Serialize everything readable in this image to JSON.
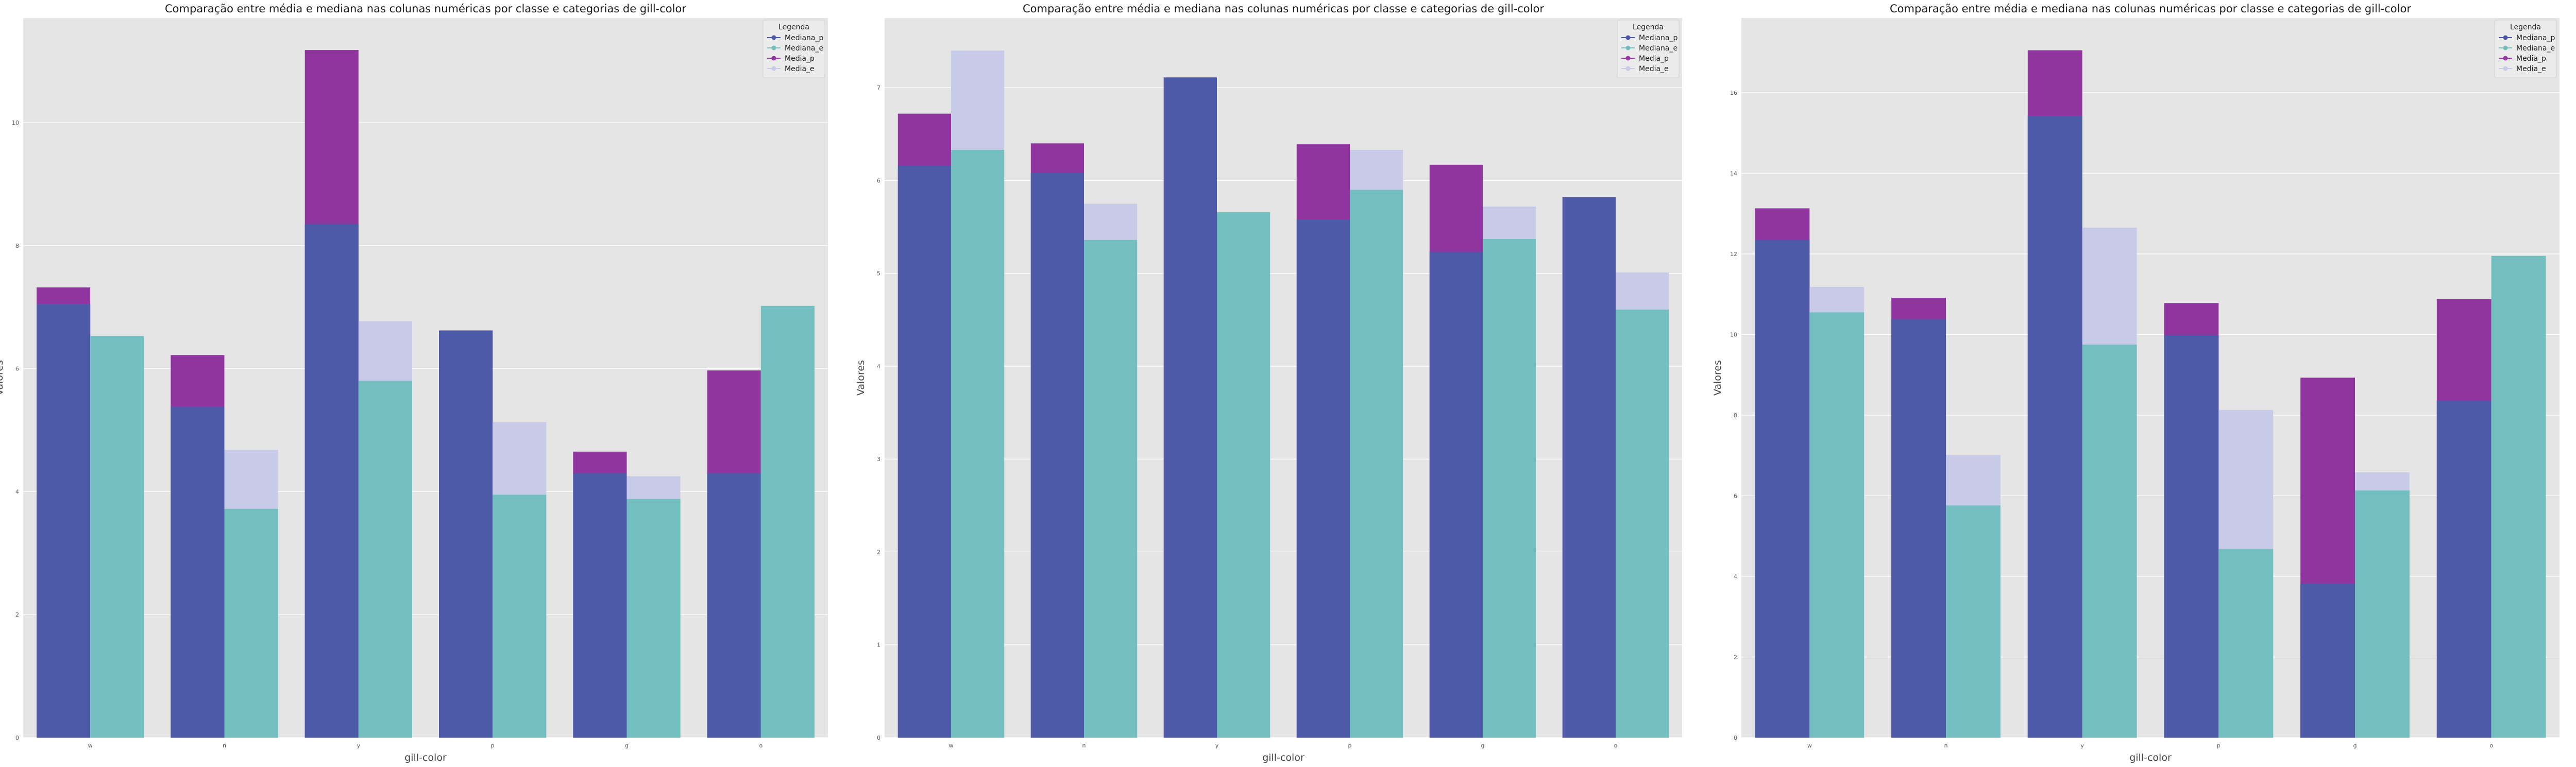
{
  "chart_data": [
    {
      "type": "bar",
      "title": "Comparação entre média e mediana nas colunas numéricas por classe e categorias de gill-color",
      "xlabel": "gill-color",
      "ylabel": "Valores",
      "categories": [
        "w",
        "n",
        "y",
        "p",
        "g",
        "o"
      ],
      "ylim": [
        0,
        11.7
      ],
      "yticks": [
        0,
        2,
        4,
        6,
        8,
        10
      ],
      "grid": true,
      "legend_title": "Legenda",
      "legend_position": "top-right",
      "series": [
        {
          "name": "Mediana_p",
          "color": "#4d5aa8",
          "values": [
            7.05,
            5.38,
            8.35,
            6.62,
            4.3,
            4.3
          ]
        },
        {
          "name": "Mediana_e",
          "color": "#73bfc0",
          "values": [
            6.53,
            3.72,
            5.8,
            3.95,
            3.88,
            7.02
          ]
        },
        {
          "name": "Media_p",
          "color": "#9035a0",
          "values": [
            7.32,
            6.22,
            11.18,
            6.62,
            4.65,
            5.97
          ]
        },
        {
          "name": "Media_e",
          "color": "#c8cbe8",
          "values": [
            6.53,
            4.68,
            6.77,
            5.13,
            4.25,
            7.02
          ]
        }
      ]
    },
    {
      "type": "bar",
      "title": "Comparação entre média e mediana nas colunas numéricas por classe e categorias de gill-color",
      "xlabel": "gill-color",
      "ylabel": "Valores",
      "categories": [
        "w",
        "n",
        "y",
        "p",
        "g",
        "o"
      ],
      "ylim": [
        0,
        7.75
      ],
      "yticks": [
        0,
        1,
        2,
        3,
        4,
        5,
        6,
        7
      ],
      "grid": true,
      "legend_title": "Legenda",
      "legend_position": "top-right",
      "series": [
        {
          "name": "Mediana_p",
          "color": "#4d5aa8",
          "values": [
            6.16,
            6.08,
            7.11,
            5.58,
            5.23,
            5.82
          ]
        },
        {
          "name": "Mediana_e",
          "color": "#73bfc0",
          "values": [
            6.33,
            5.36,
            5.66,
            5.9,
            5.37,
            4.61
          ]
        },
        {
          "name": "Media_p",
          "color": "#9035a0",
          "values": [
            6.72,
            6.4,
            7.11,
            6.39,
            6.17,
            5.82
          ]
        },
        {
          "name": "Media_e",
          "color": "#c8cbe8",
          "values": [
            7.4,
            5.75,
            5.66,
            6.33,
            5.72,
            5.01
          ]
        }
      ]
    },
    {
      "type": "bar",
      "title": "Comparação entre média e mediana nas colunas numéricas por classe e categorias de gill-color",
      "xlabel": "gill-color",
      "ylabel": "Valores",
      "categories": [
        "w",
        "n",
        "y",
        "p",
        "g",
        "o"
      ],
      "ylim": [
        0,
        17.85
      ],
      "yticks": [
        0,
        2,
        4,
        6,
        8,
        10,
        12,
        14,
        16
      ],
      "grid": true,
      "legend_title": "Legenda",
      "legend_position": "top-right",
      "series": [
        {
          "name": "Mediana_p",
          "color": "#4d5aa8",
          "values": [
            12.35,
            10.38,
            15.42,
            9.98,
            3.82,
            8.36
          ]
        },
        {
          "name": "Mediana_e",
          "color": "#73bfc0",
          "values": [
            10.55,
            5.76,
            9.75,
            4.68,
            6.13,
            11.95
          ]
        },
        {
          "name": "Media_p",
          "color": "#9035a0",
          "values": [
            13.13,
            10.91,
            17.05,
            10.78,
            8.93,
            10.88
          ]
        },
        {
          "name": "Media_e",
          "color": "#c8cbe8",
          "values": [
            11.18,
            7.01,
            12.65,
            8.13,
            6.58,
            11.95
          ]
        }
      ]
    }
  ]
}
